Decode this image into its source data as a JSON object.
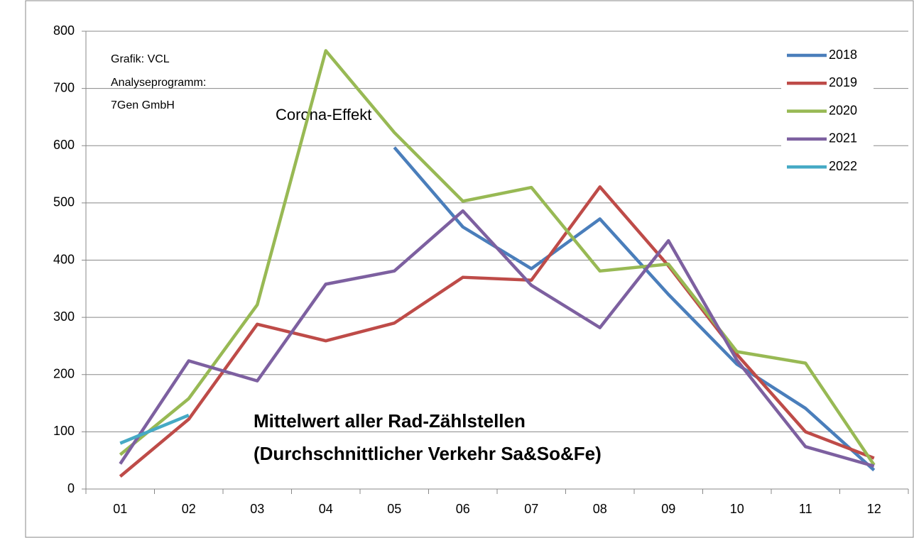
{
  "chart_data": {
    "type": "line",
    "title": "Mittelwert aller Rad-Zählstellen",
    "subtitle": "(Durchschnittlicher Verkehr Sa&So&Fe)",
    "credits": [
      "Grafik: VCL",
      "Analyseprogramm:",
      "7Gen GmbH"
    ],
    "annotation": "Corona-Effekt",
    "categories": [
      "01",
      "02",
      "03",
      "04",
      "05",
      "06",
      "07",
      "08",
      "09",
      "10",
      "11",
      "12"
    ],
    "series": [
      {
        "name": "2018",
        "color": "#4a7ebb",
        "values": [
          null,
          null,
          null,
          null,
          597,
          458,
          385,
          472,
          340,
          218,
          141,
          33
        ]
      },
      {
        "name": "2019",
        "color": "#be4b48",
        "values": [
          22,
          122,
          288,
          259,
          290,
          370,
          365,
          528,
          390,
          235,
          100,
          54
        ]
      },
      {
        "name": "2020",
        "color": "#98b954",
        "values": [
          60,
          158,
          322,
          766,
          623,
          503,
          527,
          381,
          393,
          240,
          220,
          42
        ]
      },
      {
        "name": "2021",
        "color": "#7d60a0",
        "values": [
          44,
          224,
          189,
          358,
          381,
          486,
          356,
          282,
          434,
          225,
          74,
          40
        ]
      },
      {
        "name": "2022",
        "color": "#46aac5",
        "values": [
          80,
          129,
          null,
          null,
          null,
          null,
          null,
          null,
          null,
          null,
          null,
          null
        ]
      }
    ],
    "ylim": [
      0,
      800
    ],
    "yticks": [
      0,
      100,
      200,
      300,
      400,
      500,
      600,
      700,
      800
    ],
    "grid": true,
    "legend": "top-right"
  }
}
